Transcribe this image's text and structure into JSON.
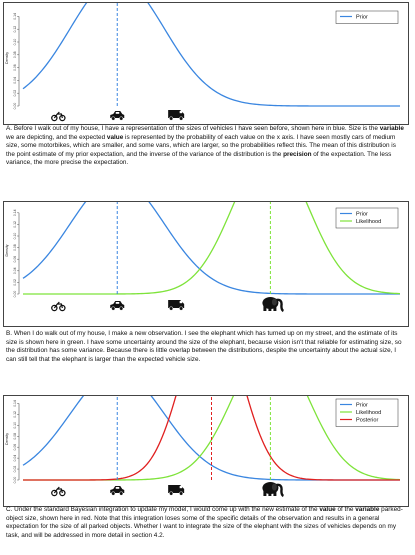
{
  "captions": {
    "a": {
      "letter": "A.",
      "t1": " Before I walk out of my house, I have a representation of the sizes of vehicles I have seen before, shown here in blue. Size is the ",
      "b1": "variable",
      "t2": " we are depicting, and the expected ",
      "b2": "value",
      "t3": " is represented by the probability of each value on the x axis. I have seen mostly cars of medium size, some motorbikes, which are smaller, and some vans, which are larger, so the probabilities reflect this. The mean of this distribution is the point estimate of my prior expectation, and the inverse of the variance of the distribution is the ",
      "b3": "precision",
      "t4": " of the expectation. The less variance, the more precise the expectation."
    },
    "b": {
      "text": "B. When I do walk out of my house, I make a new observation. I see the elephant which has turned up on my street, and the estimate of its size is shown here in green. I have some uncertainty around the size of the elephant, because vision isn't that reliable for estimating size, so the distribution has some variance. Because there is little overlap between the distributions, despite the uncertainty about the actual size, I can still tell that the elephant is larger than the expected vehicle size."
    },
    "c": {
      "t1": "C. Under the standard Bayesian integration to update my model, I would come up with the new estimate of the ",
      "b1": "value",
      "t2": " of the ",
      "b2": "variable",
      "t3": " parked-object size, shown here in red. Note that this integration loses some of the specific details of the observation and results in a general expectation for the size of all parked objects. Whether I want to integrate the size of the elephant with the sizes of vehicles depends on my task, and will be addressed in more detail in section 4.2."
    }
  },
  "icons": [
    "motorbike-icon",
    "car-icon",
    "van-icon",
    "elephant-icon"
  ],
  "chart_data": [
    {
      "type": "line",
      "ylabel": "Density",
      "yticks": [
        "0.00",
        "0.02",
        "0.04",
        "0.06",
        "0.08",
        "0.10",
        "0.12",
        "0.14"
      ],
      "ylim": [
        0,
        0.15
      ],
      "xlim": [
        -4,
        12
      ],
      "series": [
        {
          "name": "Prior",
          "color": "#3a86e0",
          "mean": 0,
          "sd": 2,
          "style": "solid"
        }
      ],
      "mean_lines": [
        {
          "x": 0,
          "color": "#3a86e0"
        }
      ],
      "legend_position": "top-right"
    },
    {
      "type": "line",
      "ylabel": "Density",
      "yticks": [
        "0.00",
        "0.02",
        "0.04",
        "0.06",
        "0.08",
        "0.10",
        "0.12",
        "0.14"
      ],
      "ylim": [
        0,
        0.15
      ],
      "xlim": [
        -4,
        12
      ],
      "series": [
        {
          "name": "Prior",
          "color": "#3a86e0",
          "mean": 0,
          "sd": 2,
          "style": "solid"
        },
        {
          "name": "Likelihood",
          "color": "#7ee33a",
          "mean": 6.5,
          "sd": 1.6,
          "style": "solid"
        }
      ],
      "mean_lines": [
        {
          "x": 0,
          "color": "#3a86e0"
        },
        {
          "x": 6.5,
          "color": "#7ee33a"
        }
      ],
      "legend_position": "top-right"
    },
    {
      "type": "line",
      "ylabel": "Density",
      "yticks": [
        "0.00",
        "0.02",
        "0.04",
        "0.06",
        "0.08",
        "0.10",
        "0.12",
        "0.14"
      ],
      "ylim": [
        0,
        0.15
      ],
      "xlim": [
        -4,
        12
      ],
      "series": [
        {
          "name": "Prior",
          "color": "#3a86e0",
          "mean": 0,
          "sd": 2,
          "style": "solid"
        },
        {
          "name": "Likelihood",
          "color": "#7ee33a",
          "mean": 6.5,
          "sd": 1.6,
          "style": "solid"
        },
        {
          "name": "Posterior",
          "color": "#e02020",
          "mean": 4,
          "sd": 1.25,
          "style": "solid"
        }
      ],
      "mean_lines": [
        {
          "x": 0,
          "color": "#3a86e0"
        },
        {
          "x": 6.5,
          "color": "#7ee33a"
        },
        {
          "x": 4,
          "color": "#e02020"
        }
      ],
      "legend_position": "top-right"
    }
  ]
}
